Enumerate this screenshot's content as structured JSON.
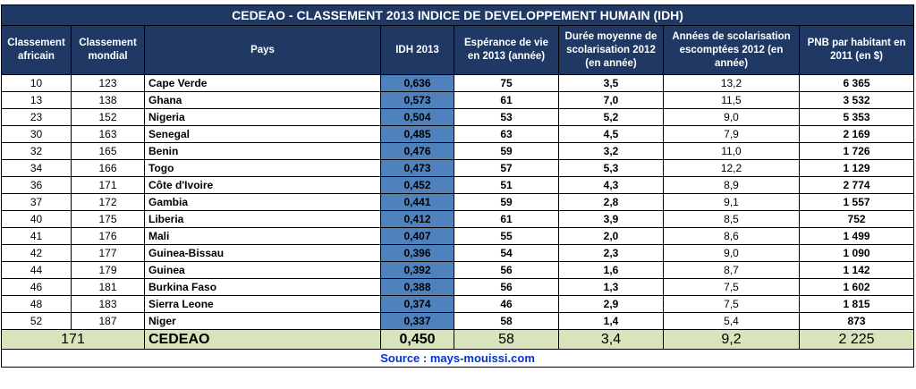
{
  "title": "CEDEAO - CLASSEMENT 2013 INDICE DE DEVELOPPEMENT HUMAIN (IDH)",
  "headers": [
    "Classement africain",
    "Classement mondial",
    "Pays",
    "IDH 2013",
    "Espérance de vie en 2013 (année)",
    "Durée moyenne de scolarisation 2012 (en année)",
    "Années de scolarisation escomptées 2012 (en année)",
    "PNB par habitant en 2011 (en $)"
  ],
  "rows": [
    {
      "af": "10",
      "mo": "123",
      "pays": "Cape Verde",
      "idh": "0,636",
      "esp": "75",
      "duree": "3,5",
      "annees": "13,2",
      "pnb": "6 365"
    },
    {
      "af": "13",
      "mo": "138",
      "pays": "Ghana",
      "idh": "0,573",
      "esp": "61",
      "duree": "7,0",
      "annees": "11,5",
      "pnb": "3 532"
    },
    {
      "af": "23",
      "mo": "152",
      "pays": "Nigeria",
      "idh": "0,504",
      "esp": "53",
      "duree": "5,2",
      "annees": "9,0",
      "pnb": "5 353"
    },
    {
      "af": "30",
      "mo": "163",
      "pays": "Senegal",
      "idh": "0,485",
      "esp": "63",
      "duree": "4,5",
      "annees": "7,9",
      "pnb": "2 169"
    },
    {
      "af": "32",
      "mo": "165",
      "pays": "Benin",
      "idh": "0,476",
      "esp": "59",
      "duree": "3,2",
      "annees": "11,0",
      "pnb": "1 726"
    },
    {
      "af": "34",
      "mo": "166",
      "pays": "Togo",
      "idh": "0,473",
      "esp": "57",
      "duree": "5,3",
      "annees": "12,2",
      "pnb": "1 129"
    },
    {
      "af": "36",
      "mo": "171",
      "pays": "Côte d'Ivoire",
      "idh": "0,452",
      "esp": "51",
      "duree": "4,3",
      "annees": "8,9",
      "pnb": "2 774"
    },
    {
      "af": "37",
      "mo": "172",
      "pays": "Gambia",
      "idh": "0,441",
      "esp": "59",
      "duree": "2,8",
      "annees": "9,1",
      "pnb": "1 557"
    },
    {
      "af": "40",
      "mo": "175",
      "pays": "Liberia",
      "idh": "0,412",
      "esp": "61",
      "duree": "3,9",
      "annees": "8,5",
      "pnb": "752"
    },
    {
      "af": "41",
      "mo": "176",
      "pays": "Mali",
      "idh": "0,407",
      "esp": "55",
      "duree": "2,0",
      "annees": "8,6",
      "pnb": "1 499"
    },
    {
      "af": "42",
      "mo": "177",
      "pays": "Guinea-Bissau",
      "idh": "0,396",
      "esp": "54",
      "duree": "2,3",
      "annees": "9,0",
      "pnb": "1 090"
    },
    {
      "af": "44",
      "mo": "179",
      "pays": "Guinea",
      "idh": "0,392",
      "esp": "56",
      "duree": "1,6",
      "annees": "8,7",
      "pnb": "1 142"
    },
    {
      "af": "46",
      "mo": "181",
      "pays": "Burkina Faso",
      "idh": "0,388",
      "esp": "56",
      "duree": "1,3",
      "annees": "7,5",
      "pnb": "1 602"
    },
    {
      "af": "48",
      "mo": "183",
      "pays": "Sierra Leone",
      "idh": "0,374",
      "esp": "46",
      "duree": "2,9",
      "annees": "7,5",
      "pnb": "1 815"
    },
    {
      "af": "52",
      "mo": "187",
      "pays": "Niger",
      "idh": "0,337",
      "esp": "58",
      "duree": "1,4",
      "annees": "5,4",
      "pnb": "873"
    }
  ],
  "total": {
    "rank": "171",
    "pays": "CEDEAO",
    "idh": "0,450",
    "esp": "58",
    "duree": "3,4",
    "annees": "9,2",
    "pnb": "2 225"
  },
  "source": "Source : mays-mouissi.com",
  "colors": {
    "header_bg": "#1f3864",
    "idh_bg": "#4f81bd",
    "total_bg": "#d8e4bc",
    "source_text": "#0033cc"
  }
}
